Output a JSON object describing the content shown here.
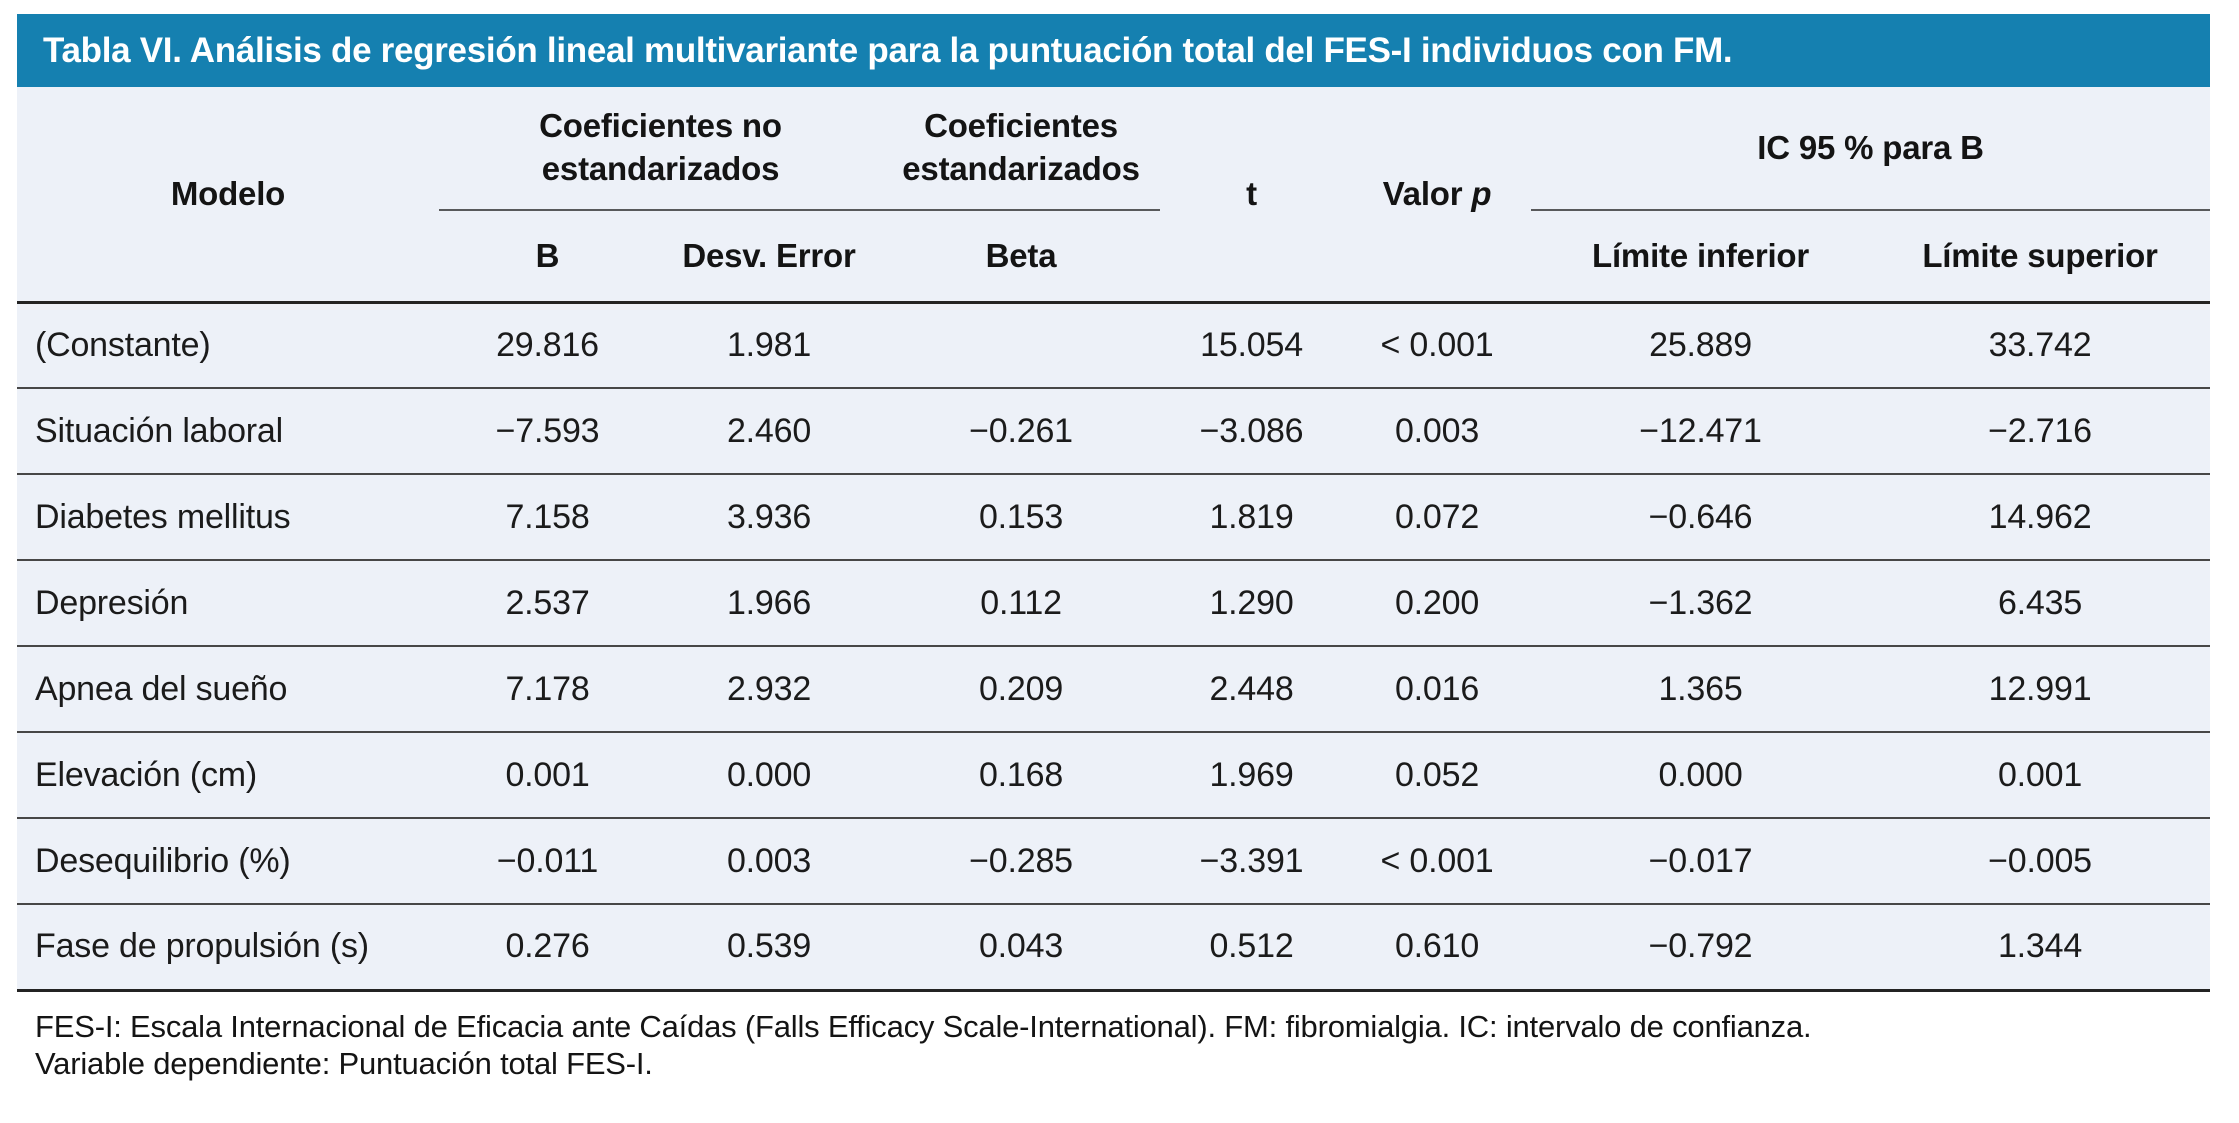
{
  "title": "Tabla VI. Análisis de regresión lineal multivariante para la puntuación total del FES-I individuos con FM.",
  "colors": {
    "title_bar_bg": "#1580B0",
    "title_text": "#FFFFFF",
    "table_bg": "#EDF1F8",
    "rule_dark": "#232323",
    "rule_row": "#474747",
    "rule_group_underline": "#58595b"
  },
  "table": {
    "headers": {
      "modelo": "Modelo",
      "coef_no_std": "Coeficientes no estandarizados",
      "coef_std": "Coeficientes estandarizados",
      "t": "t",
      "valor_p_text": "Valor",
      "valor_p_symbol": "p",
      "ic95": "IC 95 % para B",
      "b": "B",
      "desv_error": "Desv. Error",
      "beta": "Beta",
      "lim_inf": "Límite inferior",
      "lim_sup": "Límite superior"
    },
    "rows": [
      {
        "modelo": "(Constante)",
        "b": "29.816",
        "desv_error": "1.981",
        "beta": "",
        "t": "15.054",
        "p": "< 0.001",
        "lim_inf": "25.889",
        "lim_sup": "33.742"
      },
      {
        "modelo": "Situación laboral",
        "b": "−7.593",
        "desv_error": "2.460",
        "beta": "−0.261",
        "t": "−3.086",
        "p": "0.003",
        "lim_inf": "−12.471",
        "lim_sup": "−2.716"
      },
      {
        "modelo": "Diabetes mellitus",
        "b": "7.158",
        "desv_error": "3.936",
        "beta": "0.153",
        "t": "1.819",
        "p": "0.072",
        "lim_inf": "−0.646",
        "lim_sup": "14.962"
      },
      {
        "modelo": "Depresión",
        "b": "2.537",
        "desv_error": "1.966",
        "beta": "0.112",
        "t": "1.290",
        "p": "0.200",
        "lim_inf": "−1.362",
        "lim_sup": "6.435"
      },
      {
        "modelo": "Apnea del sueño",
        "b": "7.178",
        "desv_error": "2.932",
        "beta": "0.209",
        "t": "2.448",
        "p": "0.016",
        "lim_inf": "1.365",
        "lim_sup": "12.991"
      },
      {
        "modelo": "Elevación (cm)",
        "b": "0.001",
        "desv_error": "0.000",
        "beta": "0.168",
        "t": "1.969",
        "p": "0.052",
        "lim_inf": "0.000",
        "lim_sup": "0.001"
      },
      {
        "modelo": "Desequilibrio (%)",
        "b": "−0.011",
        "desv_error": "0.003",
        "beta": "−0.285",
        "t": "−3.391",
        "p": "< 0.001",
        "lim_inf": "−0.017",
        "lim_sup": "−0.005"
      },
      {
        "modelo": "Fase de propulsión (s)",
        "b": "0.276",
        "desv_error": "0.539",
        "beta": "0.043",
        "t": "0.512",
        "p": "0.610",
        "lim_inf": "−0.792",
        "lim_sup": "1.344"
      }
    ]
  },
  "footnotes": [
    "FES-I: Escala Internacional de Eficacia ante Caídas (Falls Efficacy Scale-International). FM: fibromialgia. IC: intervalo de confianza.",
    "Variable dependiente: Puntuación total FES-I."
  ]
}
